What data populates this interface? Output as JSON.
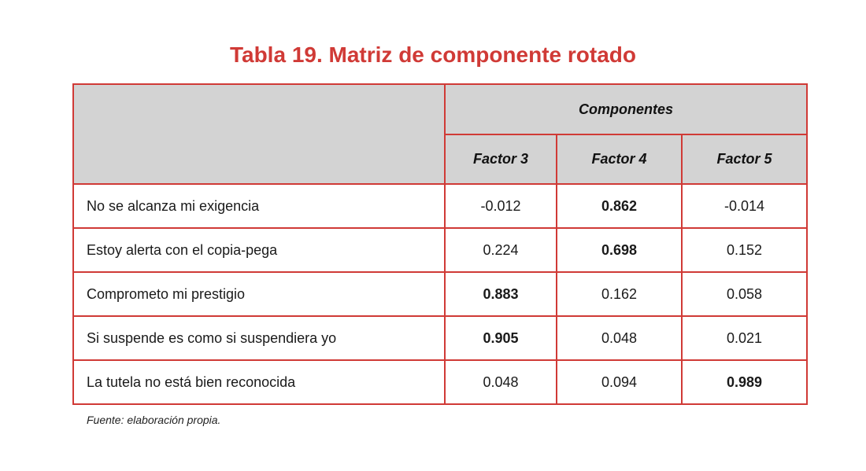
{
  "title": "Tabla 19. Matriz de componente rotado",
  "header": {
    "group_label": "Componentes",
    "columns": [
      "Factor 3",
      "Factor 4",
      "Factor 5"
    ]
  },
  "rows": [
    {
      "label": "No se alcanza mi exigencia",
      "values": [
        "-0.012",
        "0.862",
        "-0.014"
      ],
      "bold": [
        false,
        true,
        false
      ]
    },
    {
      "label": "Estoy alerta con el copia-pega",
      "values": [
        "0.224",
        "0.698",
        "0.152"
      ],
      "bold": [
        false,
        true,
        false
      ]
    },
    {
      "label": "Comprometo mi prestigio",
      "values": [
        "0.883",
        "0.162",
        "0.058"
      ],
      "bold": [
        true,
        false,
        false
      ]
    },
    {
      "label": "Si suspende es como si suspendiera yo",
      "values": [
        "0.905",
        "0.048",
        "0.021"
      ],
      "bold": [
        true,
        false,
        false
      ]
    },
    {
      "label": "La tutela no está bien reconocida",
      "values": [
        "0.048",
        "0.094",
        "0.989"
      ],
      "bold": [
        false,
        false,
        true
      ]
    }
  ],
  "source": "Fuente: elaboración propia.",
  "colors": {
    "accent": "#d03a36",
    "header_fill": "#d3d3d3"
  }
}
